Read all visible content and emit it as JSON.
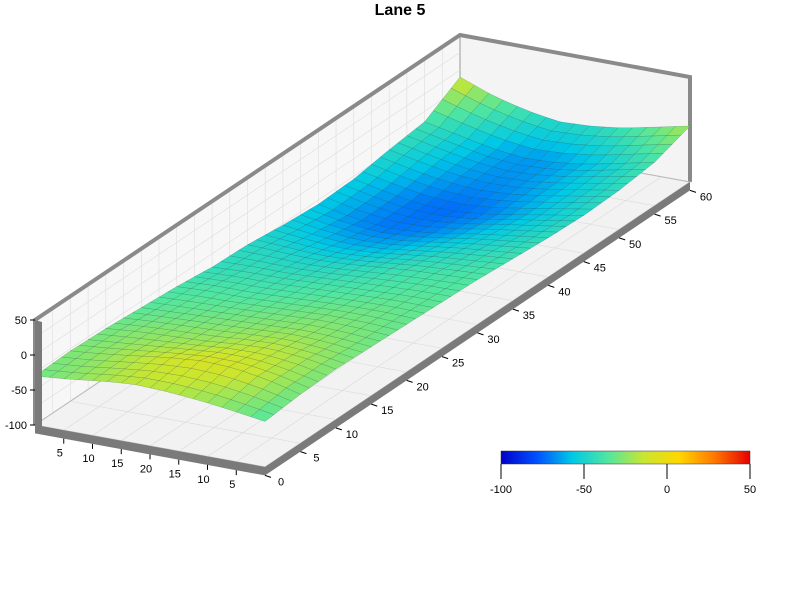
{
  "chart_data": {
    "type": "surface",
    "title": "Lane 5",
    "x_ticks": [
      "5",
      "10",
      "15",
      "20",
      "15",
      "10",
      "5"
    ],
    "y_ticks": [
      "0",
      "5",
      "10",
      "15",
      "20",
      "25",
      "30",
      "35",
      "40",
      "45",
      "50",
      "55",
      "60"
    ],
    "z_ticks": [
      "50",
      "0",
      "-50",
      "-100"
    ],
    "zlim": [
      -100,
      50
    ],
    "ylim": [
      0,
      60
    ],
    "grid": true,
    "surface_profile": {
      "description_levels": [
        {
          "y": 0,
          "z": [
            -35,
            -28,
            -22,
            -18,
            -16,
            -20,
            -26,
            -30
          ]
        },
        {
          "y": 5,
          "z": [
            -30,
            -18,
            -10,
            -8,
            -12,
            -18,
            -24,
            -28
          ]
        },
        {
          "y": 10,
          "z": [
            -28,
            -20,
            -16,
            -18,
            -22,
            -24,
            -26,
            -30
          ]
        },
        {
          "y": 15,
          "z": [
            -30,
            -26,
            -24,
            -26,
            -28,
            -30,
            -32,
            -34
          ]
        },
        {
          "y": 20,
          "z": [
            -32,
            -30,
            -30,
            -32,
            -34,
            -36,
            -36,
            -38
          ]
        },
        {
          "y": 25,
          "z": [
            -34,
            -34,
            -36,
            -38,
            -40,
            -42,
            -42,
            -44
          ]
        },
        {
          "y": 30,
          "z": [
            -36,
            -38,
            -40,
            -44,
            -48,
            -50,
            -48,
            -46
          ]
        },
        {
          "y": 35,
          "z": [
            -40,
            -44,
            -48,
            -54,
            -60,
            -62,
            -58,
            -52
          ]
        },
        {
          "y": 40,
          "z": [
            -44,
            -50,
            -56,
            -64,
            -70,
            -72,
            -66,
            -56
          ]
        },
        {
          "y": 45,
          "z": [
            -46,
            -54,
            -62,
            -70,
            -74,
            -72,
            -64,
            -54
          ]
        },
        {
          "y": 50,
          "z": [
            -44,
            -52,
            -60,
            -66,
            -68,
            -64,
            -56,
            -46
          ]
        },
        {
          "y": 55,
          "z": [
            -38,
            -48,
            -58,
            -64,
            -66,
            -60,
            -50,
            -40
          ]
        },
        {
          "y": 60,
          "z": [
            -20,
            -30,
            -40,
            -46,
            -48,
            -40,
            -28,
            -10
          ]
        }
      ]
    },
    "colorbar": {
      "ticks": [
        "-100",
        "-50",
        "0",
        "50"
      ],
      "range": [
        -100,
        50
      ],
      "colors": [
        "#0000c8",
        "#0050ff",
        "#00c8e6",
        "#50e6a0",
        "#c8e632",
        "#ffd700",
        "#ff7800",
        "#e60000"
      ]
    }
  }
}
